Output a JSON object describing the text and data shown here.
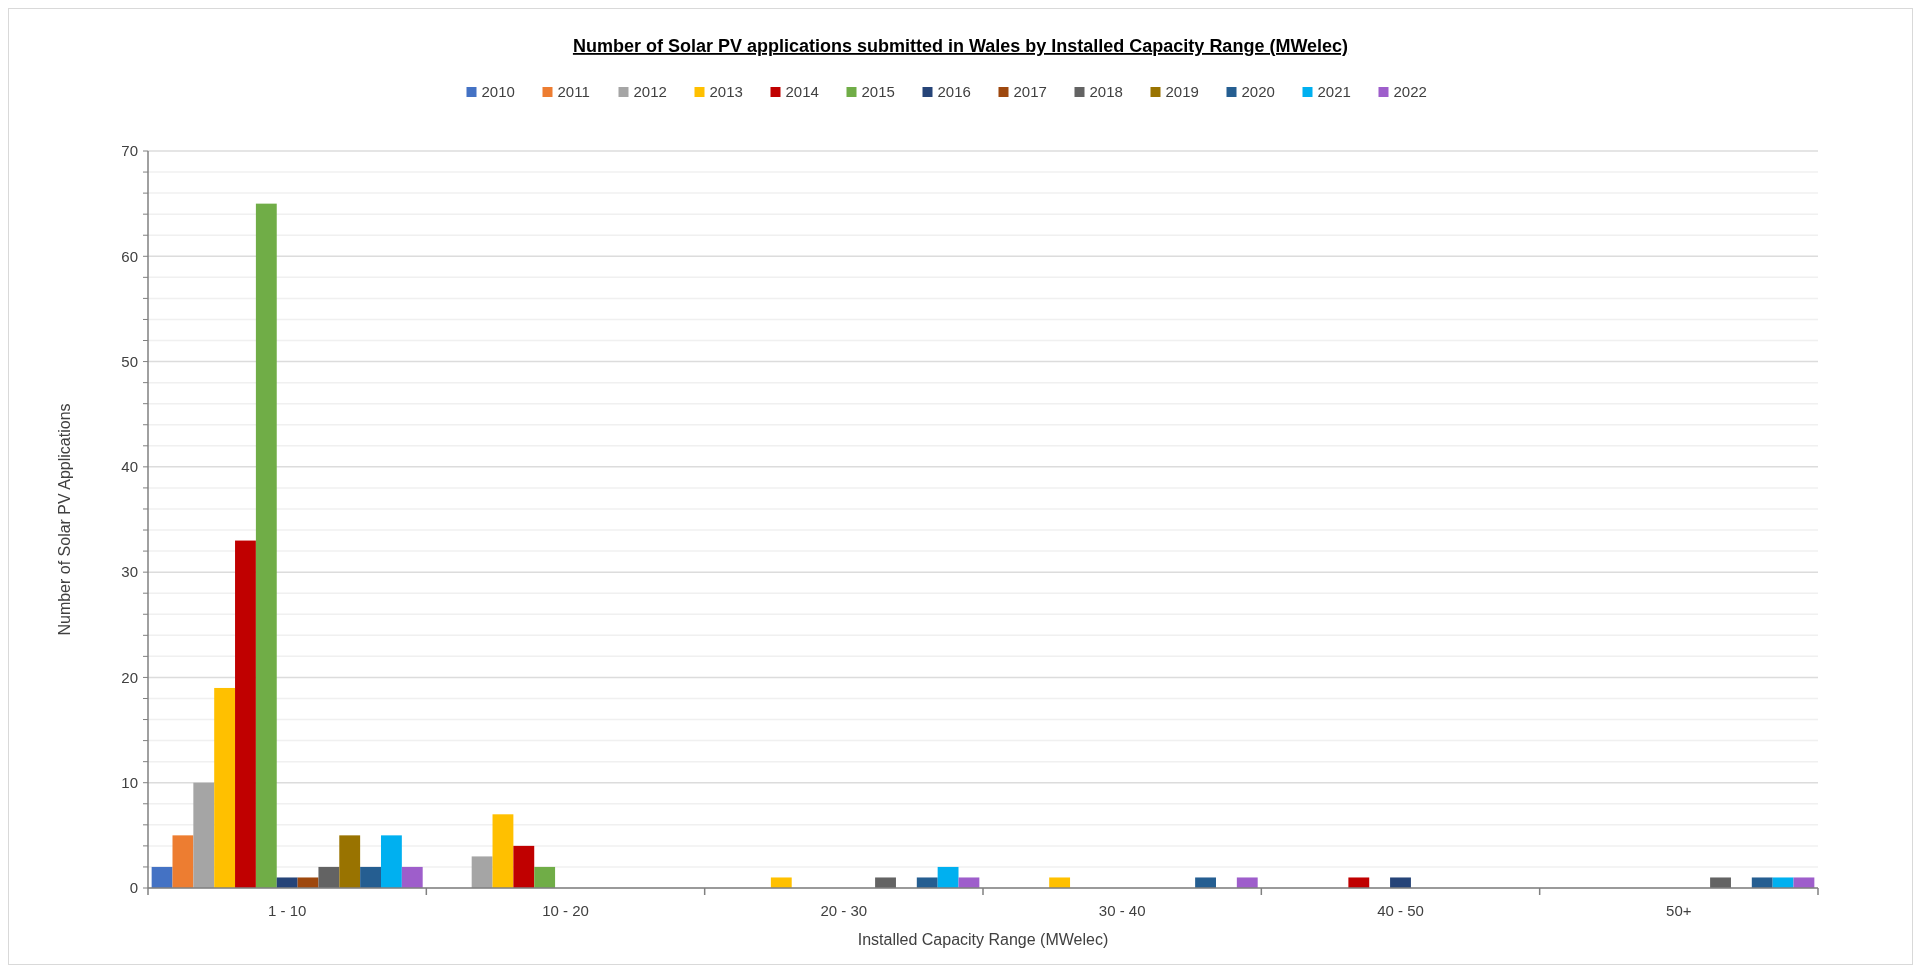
{
  "chart_data": {
    "type": "bar",
    "title": "Number of Solar PV applications submitted in Wales by Installed Capacity Range (MWelec)",
    "xlabel": "Installed Capacity Range (MWelec)",
    "ylabel": "Number of Solar PV Applications",
    "categories": [
      "1 - 10",
      "10 - 20",
      "20 - 30",
      "30 - 40",
      "40 - 50",
      "50+"
    ],
    "series": [
      {
        "name": "2010",
        "color": "#4472c4",
        "values": [
          2,
          0,
          0,
          0,
          0,
          0
        ]
      },
      {
        "name": "2011",
        "color": "#ed7d31",
        "values": [
          5,
          0,
          0,
          0,
          0,
          0
        ]
      },
      {
        "name": "2012",
        "color": "#a5a5a5",
        "values": [
          10,
          3,
          0,
          0,
          0,
          0
        ]
      },
      {
        "name": "2013",
        "color": "#ffc000",
        "values": [
          19,
          7,
          1,
          1,
          0,
          0
        ]
      },
      {
        "name": "2014",
        "color": "#c00000",
        "values": [
          33,
          4,
          0,
          0,
          1,
          0
        ]
      },
      {
        "name": "2015",
        "color": "#70ad47",
        "values": [
          65,
          2,
          0,
          0,
          0,
          0
        ]
      },
      {
        "name": "2016",
        "color": "#264478",
        "values": [
          1,
          0,
          0,
          0,
          1,
          0
        ]
      },
      {
        "name": "2017",
        "color": "#9e480e",
        "values": [
          1,
          0,
          0,
          0,
          0,
          0
        ]
      },
      {
        "name": "2018",
        "color": "#636363",
        "values": [
          2,
          0,
          1,
          0,
          0,
          1
        ]
      },
      {
        "name": "2019",
        "color": "#997300",
        "values": [
          5,
          0,
          0,
          0,
          0,
          0
        ]
      },
      {
        "name": "2020",
        "color": "#255e91",
        "values": [
          2,
          0,
          1,
          1,
          0,
          1
        ]
      },
      {
        "name": "2021",
        "color": "#00b0f0",
        "values": [
          5,
          0,
          2,
          0,
          0,
          1
        ]
      },
      {
        "name": "2022",
        "color": "#9e5ecb",
        "values": [
          2,
          0,
          1,
          1,
          0,
          1
        ]
      }
    ],
    "ylim": [
      0,
      70
    ],
    "yticks": [
      0,
      {
        "value": 2,
        "label": null
      },
      {
        "value": 4,
        "label": null
      },
      {
        "value": 6,
        "label": null
      },
      {
        "value": 8,
        "label": null
      },
      10,
      {
        "value": 12,
        "label": null
      },
      {
        "value": 14,
        "label": null
      },
      {
        "value": 16,
        "label": null
      },
      {
        "value": 18,
        "label": null
      },
      20,
      {
        "value": 22,
        "label": null
      },
      {
        "value": 24,
        "label": null
      },
      {
        "value": 26,
        "label": null
      },
      {
        "value": 28,
        "label": null
      },
      30,
      {
        "value": 32,
        "label": null
      },
      {
        "value": 34,
        "label": null
      },
      {
        "value": 36,
        "label": null
      },
      {
        "value": 38,
        "label": null
      },
      40,
      {
        "value": 42,
        "label": null
      },
      {
        "value": 44,
        "label": null
      },
      {
        "value": 46,
        "label": null
      },
      {
        "value": 48,
        "label": null
      },
      50,
      {
        "value": 52,
        "label": null
      },
      {
        "value": 54,
        "label": null
      },
      {
        "value": 56,
        "label": null
      },
      {
        "value": 58,
        "label": null
      },
      60,
      {
        "value": 62,
        "label": null
      },
      {
        "value": 64,
        "label": null
      },
      {
        "value": 66,
        "label": null
      },
      {
        "value": 68,
        "label": null
      },
      70
    ],
    "grid": "y",
    "legend": "top"
  }
}
